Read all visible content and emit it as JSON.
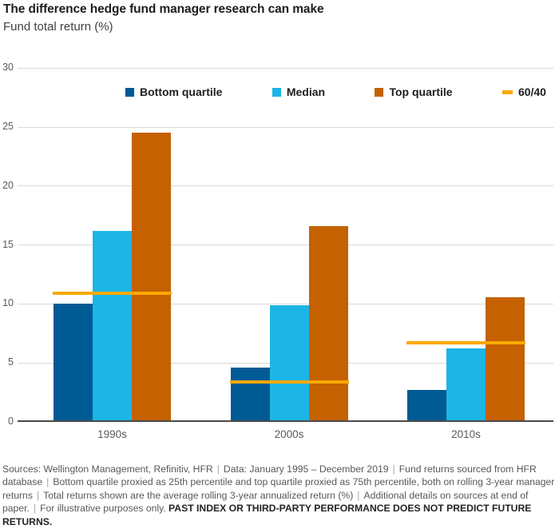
{
  "header": {
    "title": "The difference hedge fund manager research can make",
    "subtitle": "Fund total return (%)"
  },
  "chart_data": {
    "type": "bar",
    "title": "The difference hedge fund manager research can make",
    "ylabel": "Fund total return (%)",
    "categories": [
      "1990s",
      "2000s",
      "2010s"
    ],
    "series": [
      {
        "name": "Bottom quartile",
        "color": "#005a94",
        "values": [
          10.0,
          4.6,
          2.7
        ]
      },
      {
        "name": "Median",
        "color": "#1cb5e5",
        "values": [
          16.2,
          9.9,
          6.2
        ]
      },
      {
        "name": "Top quartile",
        "color": "#c56100",
        "values": [
          24.5,
          16.6,
          10.6
        ]
      }
    ],
    "line_series": {
      "name": "60/40",
      "color": "#faa900",
      "values": [
        10.9,
        3.4,
        6.7
      ]
    },
    "ylim": [
      0,
      30
    ],
    "yticks": [
      0,
      5,
      10,
      15,
      20,
      25,
      30
    ],
    "grid": true,
    "legend_position": "top-inside"
  },
  "footer": {
    "segments": [
      "Sources: Wellington Management, Refinitiv, HFR",
      "Data: January 1995 – December 2019",
      "Fund returns sourced from HFR database",
      "Bottom quartile proxied as 25th percentile and top quartile proxied as 75th percentile, both on rolling 3-year manager returns",
      "Total returns shown are the average rolling 3-year annualized return (%)",
      "Additional details on sources at end of paper.",
      "For illustrative purposes only."
    ],
    "bold": "PAST INDEX OR THIRD-PARTY PERFORMANCE DOES NOT PREDICT FUTURE RETURNS."
  }
}
